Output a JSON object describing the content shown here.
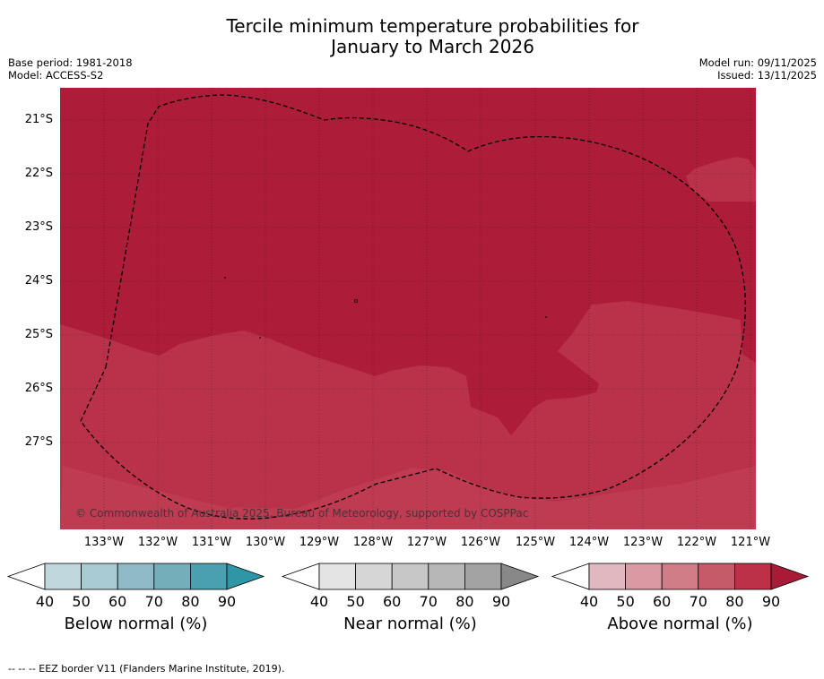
{
  "title_line1": "Tercile minimum temperature probabilities for",
  "title_line2": "January to March 2026",
  "base_period": "Base period: 1981-2018",
  "model": "Model: ACCESS-S2",
  "model_run": "Model run: 09/11/2025",
  "issued": "Issued: 13/11/2025",
  "copyright": "© Commonwealth of Australia 2025, Bureau of Meteorology, supported by COSPPac",
  "footer": "--  --  -- EEZ border V11 (Flanders Marine Institute, 2019).",
  "lat_labels": [
    "21°S",
    "22°S",
    "23°S",
    "24°S",
    "25°S",
    "26°S",
    "27°S"
  ],
  "lon_labels": [
    "133°W",
    "132°W",
    "131°W",
    "130°W",
    "129°W",
    "128°W",
    "127°W",
    "126°W",
    "125°W",
    "124°W",
    "123°W",
    "122°W",
    "121°W"
  ],
  "colorbars": [
    {
      "title": "Below normal (%)",
      "ticks": [
        "40",
        "50",
        "60",
        "70",
        "80",
        "90"
      ],
      "colors": [
        "#c0d7de",
        "#a9cbd3",
        "#8fbbc6",
        "#75aebb",
        "#4ba0b0",
        "#2f96a8"
      ]
    },
    {
      "title": "Near normal (%)",
      "ticks": [
        "40",
        "50",
        "60",
        "70",
        "80",
        "90"
      ],
      "colors": [
        "#e4e4e4",
        "#d6d6d6",
        "#c7c7c7",
        "#b7b7b7",
        "#a3a3a3",
        "#888888"
      ]
    },
    {
      "title": "Above normal (%)",
      "ticks": [
        "40",
        "50",
        "60",
        "70",
        "80",
        "90"
      ],
      "colors": [
        "#e2b8c0",
        "#d99aa4",
        "#cf7c87",
        "#c55a69",
        "#bb3148",
        "#a81a36"
      ]
    }
  ],
  "map_colors": {
    "dark": "#ad1c38",
    "medium": "#ba3249",
    "light": "#be3b52"
  },
  "legend_text": "EEZ border"
}
